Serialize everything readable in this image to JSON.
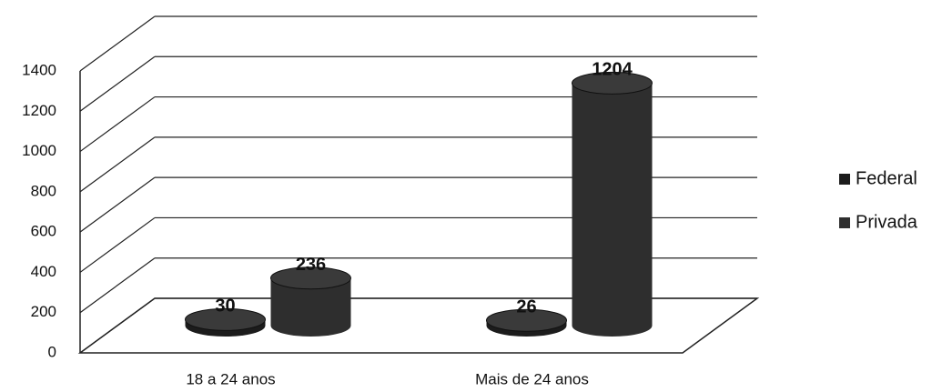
{
  "chart_data": {
    "type": "bar3d",
    "categories": [
      "18 a 24 anos",
      "Mais de 24 anos"
    ],
    "series": [
      {
        "name": "Federal",
        "color": "#1c1c1c",
        "values": [
          30,
          26
        ]
      },
      {
        "name": "Privada",
        "color": "#2e2e2e",
        "values": [
          236,
          1204
        ]
      }
    ],
    "ylim": [
      0,
      1400
    ],
    "yticks": [
      0,
      200,
      400,
      600,
      800,
      1000,
      1200,
      1400
    ],
    "grid": true,
    "legend": "right"
  }
}
